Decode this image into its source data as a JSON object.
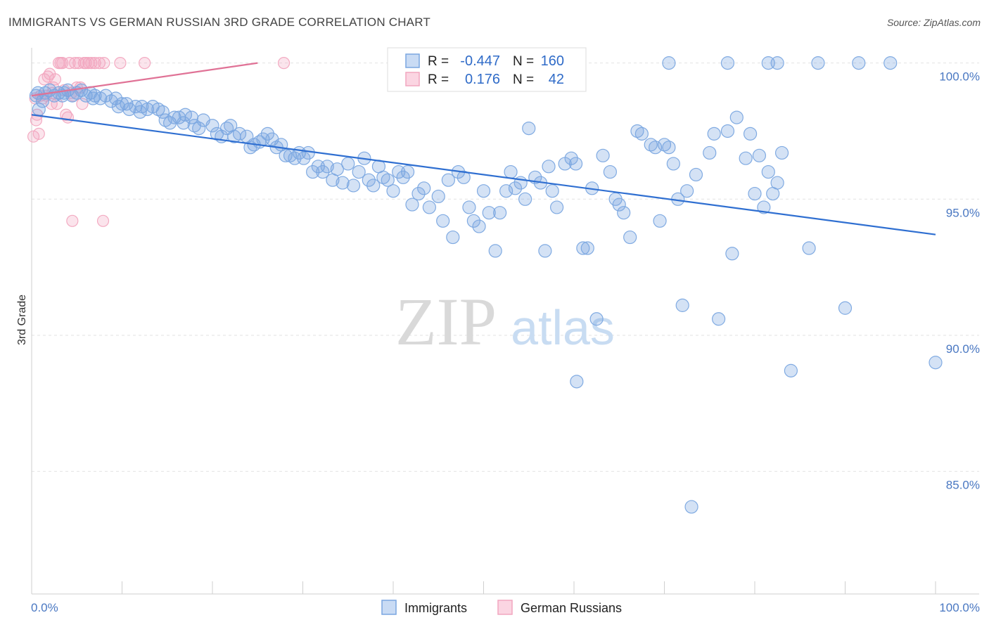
{
  "title": "IMMIGRANTS VS GERMAN RUSSIAN 3RD GRADE CORRELATION CHART",
  "source": "Source: ZipAtlas.com",
  "watermark": {
    "zip": "ZIP",
    "atlas": "atlas"
  },
  "chart_data": {
    "type": "scatter",
    "title": "IMMIGRANTS VS GERMAN RUSSIAN 3RD GRADE CORRELATION CHART",
    "ylabel": "3rd Grade",
    "xlabel": "",
    "x_ticks": [
      "0.0%",
      "100.0%"
    ],
    "y_ticks": [
      "100.0%",
      "95.0%",
      "90.0%",
      "85.0%"
    ],
    "y_tick_values": [
      100,
      95,
      90,
      85
    ],
    "xlim": [
      0,
      100
    ],
    "ylim": [
      80.5,
      100.3
    ],
    "grid": true,
    "legend_position": "bottom",
    "stats": [
      {
        "r_label": "R =",
        "r": "-0.447",
        "n_label": "N =",
        "n": "160"
      },
      {
        "r_label": "R =",
        "r": "0.176",
        "n_label": "N =",
        "n": "42"
      }
    ],
    "series": [
      {
        "name": "Immigrants",
        "color": "#7aa6e0",
        "line_color": "#2f6fd1",
        "trend": {
          "x": [
            0,
            100
          ],
          "y": [
            98.1,
            93.7
          ]
        },
        "points": [
          [
            0.5,
            98.8
          ],
          [
            0.7,
            98.9
          ],
          [
            1.5,
            98.9
          ],
          [
            2.0,
            99.0
          ],
          [
            2.5,
            98.8
          ],
          [
            3.0,
            98.9
          ],
          [
            3.4,
            98.8
          ],
          [
            4.0,
            99.0
          ],
          [
            4.5,
            98.8
          ],
          [
            5.0,
            98.9
          ],
          [
            5.5,
            99.0
          ],
          [
            6.0,
            98.8
          ],
          [
            6.5,
            98.9
          ],
          [
            7.0,
            98.8
          ],
          [
            7.6,
            98.7
          ],
          [
            8.2,
            98.8
          ],
          [
            8.8,
            98.6
          ],
          [
            9.3,
            98.7
          ],
          [
            10.0,
            98.5
          ],
          [
            10.5,
            98.5
          ],
          [
            10.8,
            98.3
          ],
          [
            11.5,
            98.4
          ],
          [
            12.2,
            98.4
          ],
          [
            12.8,
            98.3
          ],
          [
            13.4,
            98.4
          ],
          [
            14.0,
            98.3
          ],
          [
            14.5,
            98.2
          ],
          [
            14.8,
            97.9
          ],
          [
            15.3,
            97.8
          ],
          [
            15.8,
            98.0
          ],
          [
            16.3,
            98.0
          ],
          [
            17.0,
            98.1
          ],
          [
            17.7,
            98.0
          ],
          [
            18.0,
            97.7
          ],
          [
            18.5,
            97.6
          ],
          [
            19.0,
            97.9
          ],
          [
            20.0,
            97.7
          ],
          [
            20.5,
            97.4
          ],
          [
            21.0,
            97.3
          ],
          [
            21.6,
            97.6
          ],
          [
            22.0,
            97.7
          ],
          [
            22.4,
            97.3
          ],
          [
            23.0,
            97.4
          ],
          [
            23.8,
            97.3
          ],
          [
            24.2,
            96.9
          ],
          [
            24.6,
            97.0
          ],
          [
            25.2,
            97.1
          ],
          [
            25.6,
            97.2
          ],
          [
            26.1,
            97.4
          ],
          [
            26.6,
            97.2
          ],
          [
            27.1,
            96.9
          ],
          [
            27.6,
            97.0
          ],
          [
            28.1,
            96.6
          ],
          [
            28.6,
            96.6
          ],
          [
            29.1,
            96.5
          ],
          [
            29.6,
            96.7
          ],
          [
            30.1,
            96.5
          ],
          [
            30.6,
            96.7
          ],
          [
            31.1,
            96.0
          ],
          [
            31.7,
            96.2
          ],
          [
            32.2,
            96.0
          ],
          [
            32.7,
            96.2
          ],
          [
            33.3,
            95.7
          ],
          [
            33.8,
            96.1
          ],
          [
            34.4,
            95.6
          ],
          [
            35.0,
            96.3
          ],
          [
            35.6,
            95.5
          ],
          [
            36.2,
            96.0
          ],
          [
            36.8,
            96.5
          ],
          [
            37.3,
            95.7
          ],
          [
            37.8,
            95.5
          ],
          [
            38.4,
            96.2
          ],
          [
            38.9,
            95.8
          ],
          [
            39.4,
            95.7
          ],
          [
            40.0,
            95.3
          ],
          [
            40.6,
            96.0
          ],
          [
            41.1,
            95.8
          ],
          [
            41.6,
            96.0
          ],
          [
            42.1,
            94.8
          ],
          [
            42.8,
            95.2
          ],
          [
            43.4,
            95.4
          ],
          [
            44.0,
            94.7
          ],
          [
            45.0,
            95.1
          ],
          [
            45.5,
            94.2
          ],
          [
            46.1,
            95.7
          ],
          [
            46.6,
            93.6
          ],
          [
            47.2,
            96.0
          ],
          [
            47.8,
            95.8
          ],
          [
            48.4,
            94.7
          ],
          [
            48.9,
            94.2
          ],
          [
            49.5,
            94.0
          ],
          [
            50.0,
            95.3
          ],
          [
            50.6,
            94.5
          ],
          [
            51.3,
            93.1
          ],
          [
            51.8,
            94.5
          ],
          [
            52.5,
            95.3
          ],
          [
            53.0,
            96.0
          ],
          [
            53.5,
            95.4
          ],
          [
            54.1,
            95.6
          ],
          [
            54.6,
            95.0
          ],
          [
            55.0,
            97.6
          ],
          [
            55.7,
            95.8
          ],
          [
            56.3,
            95.6
          ],
          [
            56.8,
            93.1
          ],
          [
            57.2,
            96.2
          ],
          [
            57.6,
            95.3
          ],
          [
            58.1,
            94.7
          ],
          [
            59.0,
            96.3
          ],
          [
            59.7,
            96.5
          ],
          [
            60.2,
            96.3
          ],
          [
            61.0,
            93.2
          ],
          [
            61.5,
            93.2
          ],
          [
            62.0,
            95.4
          ],
          [
            62.5,
            90.6
          ],
          [
            63.2,
            96.6
          ],
          [
            64.0,
            96.0
          ],
          [
            64.6,
            95.0
          ],
          [
            65.0,
            94.8
          ],
          [
            65.5,
            94.5
          ],
          [
            66.2,
            93.6
          ],
          [
            67.0,
            97.5
          ],
          [
            67.5,
            97.4
          ],
          [
            68.5,
            97.0
          ],
          [
            69.0,
            96.9
          ],
          [
            69.5,
            94.2
          ],
          [
            70.0,
            97.0
          ],
          [
            70.5,
            96.9
          ],
          [
            71.0,
            96.3
          ],
          [
            71.5,
            95.0
          ],
          [
            72.0,
            91.1
          ],
          [
            72.5,
            95.3
          ],
          [
            73.5,
            95.9
          ],
          [
            75.0,
            96.7
          ],
          [
            75.5,
            97.4
          ],
          [
            76.0,
            90.6
          ],
          [
            77.0,
            97.5
          ],
          [
            77.5,
            93.0
          ],
          [
            78.0,
            98.0
          ],
          [
            79.0,
            96.5
          ],
          [
            79.5,
            97.4
          ],
          [
            80.0,
            95.2
          ],
          [
            80.5,
            96.6
          ],
          [
            81.0,
            94.7
          ],
          [
            81.5,
            96.0
          ],
          [
            82.0,
            95.2
          ],
          [
            82.5,
            95.6
          ],
          [
            83.0,
            96.7
          ],
          [
            84.0,
            88.7
          ],
          [
            86.0,
            93.2
          ],
          [
            90.0,
            91.0
          ],
          [
            100.0,
            89.0
          ],
          [
            60.3,
            88.3
          ],
          [
            73.0,
            83.7
          ],
          [
            70.5,
            100.0
          ],
          [
            77.0,
            100.0
          ],
          [
            81.5,
            100.0
          ],
          [
            82.5,
            100.0
          ],
          [
            87.0,
            100.0
          ],
          [
            91.5,
            100.0
          ],
          [
            95.0,
            100.0
          ],
          [
            59.9,
            99.4
          ],
          [
            0.8,
            98.3
          ],
          [
            1.2,
            98.6
          ],
          [
            3.6,
            98.9
          ],
          [
            6.8,
            98.7
          ],
          [
            9.6,
            98.4
          ],
          [
            12.0,
            98.2
          ],
          [
            16.8,
            97.8
          ]
        ]
      },
      {
        "name": "German Russians",
        "color": "#f2a6bf",
        "line_color": "#e07296",
        "trend": {
          "x": [
            0,
            25
          ],
          "y": [
            98.8,
            100.0
          ]
        },
        "points": [
          [
            0.2,
            97.3
          ],
          [
            0.4,
            98.7
          ],
          [
            0.6,
            98.1
          ],
          [
            0.8,
            97.4
          ],
          [
            1.0,
            98.8
          ],
          [
            1.2,
            98.7
          ],
          [
            1.4,
            99.4
          ],
          [
            1.6,
            98.8
          ],
          [
            1.8,
            99.5
          ],
          [
            2.0,
            99.6
          ],
          [
            2.2,
            98.5
          ],
          [
            2.4,
            99.1
          ],
          [
            2.6,
            99.4
          ],
          [
            2.8,
            98.5
          ],
          [
            3.0,
            100.0
          ],
          [
            3.2,
            100.0
          ],
          [
            3.4,
            100.0
          ],
          [
            3.6,
            99.0
          ],
          [
            3.8,
            98.1
          ],
          [
            4.0,
            98.0
          ],
          [
            4.2,
            100.0
          ],
          [
            4.4,
            98.9
          ],
          [
            4.6,
            98.8
          ],
          [
            4.8,
            100.0
          ],
          [
            5.0,
            99.1
          ],
          [
            5.2,
            100.0
          ],
          [
            5.4,
            99.1
          ],
          [
            5.6,
            98.5
          ],
          [
            5.8,
            100.0
          ],
          [
            6.0,
            100.0
          ],
          [
            6.3,
            100.0
          ],
          [
            6.6,
            100.0
          ],
          [
            7.0,
            100.0
          ],
          [
            7.5,
            100.0
          ],
          [
            8.0,
            100.0
          ],
          [
            9.8,
            100.0
          ],
          [
            12.5,
            100.0
          ],
          [
            27.9,
            100.0
          ],
          [
            4.5,
            94.2
          ],
          [
            7.9,
            94.2
          ],
          [
            0.5,
            97.9
          ],
          [
            2.3,
            98.9
          ]
        ]
      }
    ]
  }
}
